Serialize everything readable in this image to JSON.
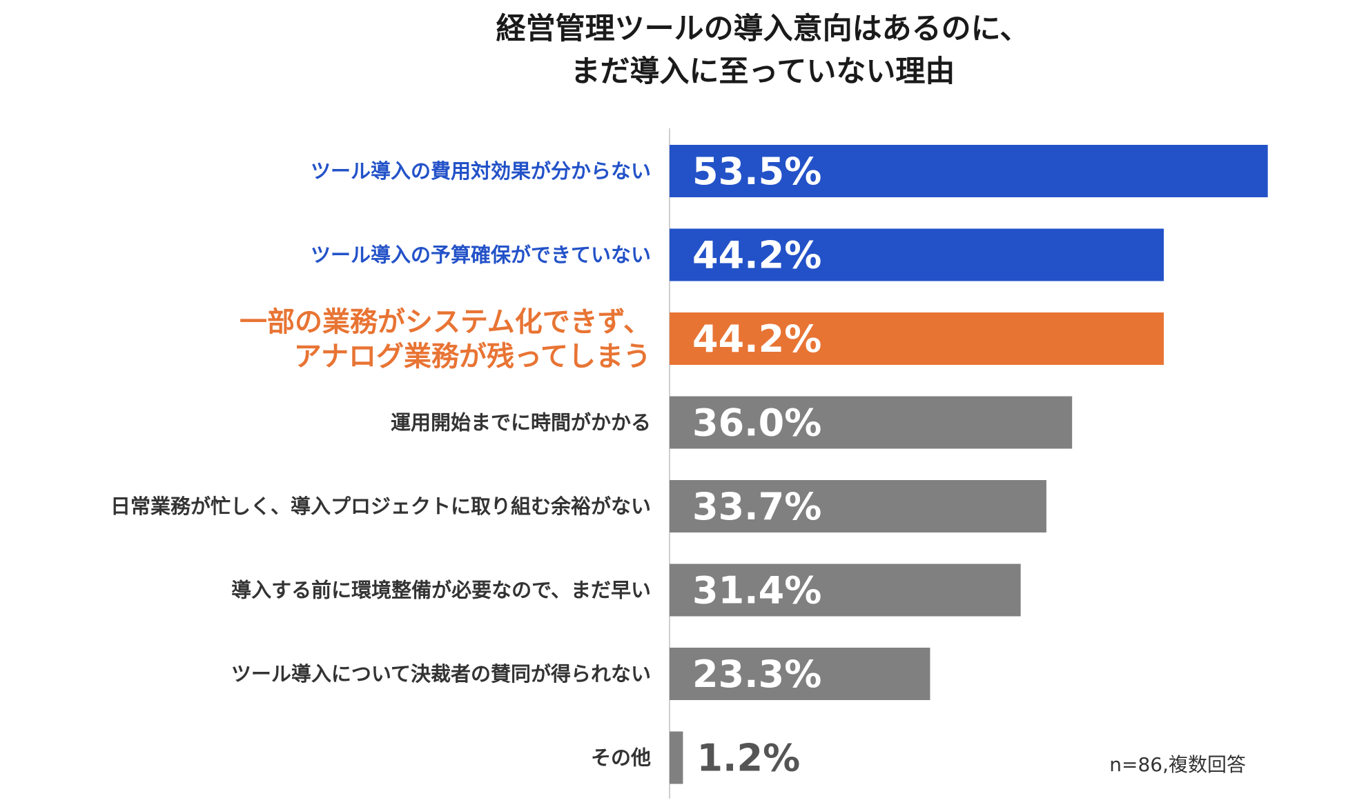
{
  "chart_data": {
    "type": "bar",
    "orientation": "horizontal",
    "title_lines": [
      "経営管理ツールの導入意向はあるのに、",
      "まだ導入に至っていない理由"
    ],
    "note": "n=86,複数回答",
    "unit": "%",
    "xlim": [
      0,
      60
    ],
    "grid": false,
    "items": [
      {
        "label_lines": [
          "ツール導入の費用対効果が分からない"
        ],
        "value": 53.5,
        "value_label": "53.5%",
        "color": "#2352c8",
        "label_color": "#2352c8"
      },
      {
        "label_lines": [
          "ツール導入の予算確保ができていない"
        ],
        "value": 44.2,
        "value_label": "44.2%",
        "color": "#2352c8",
        "label_color": "#2352c8"
      },
      {
        "label_lines": [
          "一部の業務がシステム化できず、",
          "アナログ業務が残ってしまう"
        ],
        "value": 44.2,
        "value_label": "44.2%",
        "color": "#e87434",
        "label_color": "#e87434",
        "emphasis": true
      },
      {
        "label_lines": [
          "運用開始までに時間がかかる"
        ],
        "value": 36.0,
        "value_label": "36.0%",
        "color": "#808080",
        "label_color": "#333333"
      },
      {
        "label_lines": [
          "日常業務が忙しく、導入プロジェクトに取り組む余裕がない"
        ],
        "value": 33.7,
        "value_label": "33.7%",
        "color": "#808080",
        "label_color": "#333333"
      },
      {
        "label_lines": [
          "導入する前に環境整備が必要なので、まだ早い"
        ],
        "value": 31.4,
        "value_label": "31.4%",
        "color": "#808080",
        "label_color": "#333333"
      },
      {
        "label_lines": [
          "ツール導入について決裁者の賛同が得られない"
        ],
        "value": 23.3,
        "value_label": "23.3%",
        "color": "#808080",
        "label_color": "#333333"
      },
      {
        "label_lines": [
          "その他"
        ],
        "value": 1.2,
        "value_label": "1.2%",
        "color": "#808080",
        "label_color": "#333333",
        "value_label_color": "#555555"
      }
    ]
  }
}
